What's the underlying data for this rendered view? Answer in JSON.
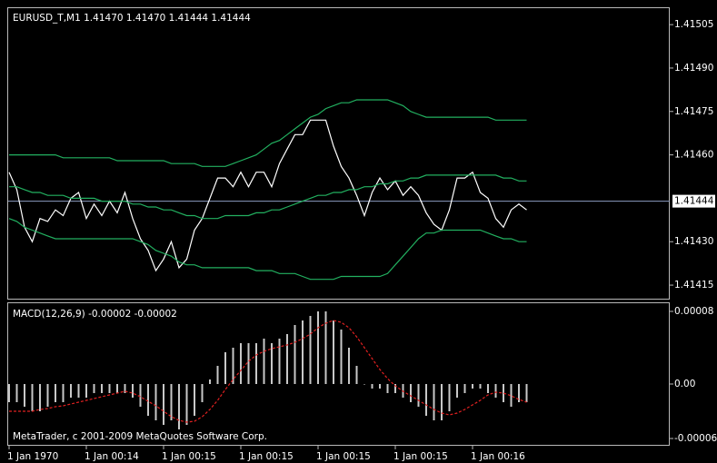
{
  "chart_data": [
    {
      "type": "line",
      "title": "EURUSD_T,M1  1.41470 1.41470 1.41444 1.41444",
      "categories": [
        "1 Jan 1970",
        null,
        null,
        null,
        null,
        null,
        null,
        null,
        null,
        null,
        "1 Jan 00:14",
        null,
        null,
        null,
        null,
        null,
        null,
        null,
        null,
        null,
        "1 Jan 00:15",
        null,
        null,
        null,
        null,
        null,
        null,
        null,
        null,
        null,
        "1 Jan 00:15",
        null,
        null,
        null,
        null,
        null,
        null,
        null,
        null,
        null,
        "1 Jan 00:15",
        null,
        null,
        null,
        null,
        null,
        null,
        null,
        null,
        null,
        "1 Jan 00:15",
        null,
        null,
        null,
        null,
        null,
        null,
        null,
        null,
        null,
        "1 Jan 00:16",
        null,
        null,
        null,
        null,
        null,
        null,
        null
      ],
      "ylim": [
        1.4141,
        1.41511
      ],
      "yticks": [
        1.41505,
        {
          "value": 1.4149,
          "label": "1.41490"
        },
        1.41475,
        {
          "value": 1.4146,
          "label": "1.41460"
        },
        {
          "value": 1.4143,
          "label": "1.41430"
        },
        1.41415
      ],
      "current_price": 1.41444,
      "current_price_color": "#8c9cc0",
      "grid": false,
      "series": [
        {
          "color": "#ffffff",
          "values": [
            1.41454,
            1.41448,
            1.41435,
            1.4143,
            1.41438,
            1.41437,
            1.41441,
            1.41439,
            1.41445,
            1.41447,
            1.41438,
            1.41443,
            1.41439,
            1.41444,
            1.4144,
            1.41447,
            1.41438,
            1.41431,
            1.41427,
            1.4142,
            1.41424,
            1.4143,
            1.41421,
            1.41424,
            1.41434,
            1.41438,
            1.41445,
            1.41452,
            1.41452,
            1.41449,
            1.41454,
            1.41449,
            1.41454,
            1.41454,
            1.41449,
            1.41457,
            1.41462,
            1.41467,
            1.41467,
            1.41472,
            1.41472,
            1.41472,
            1.41463,
            1.41456,
            1.41452,
            1.41446,
            1.41439,
            1.41447,
            1.41452,
            1.41448,
            1.41451,
            1.41446,
            1.41449,
            1.41446,
            1.4144,
            1.41436,
            1.41434,
            1.41441,
            1.41452,
            1.41452,
            1.41454,
            1.41447,
            1.41445,
            1.41438,
            1.41435,
            1.41441,
            1.41443,
            1.41441
          ]
        },
        {
          "color": "#22b060",
          "values": [
            1.4146,
            1.4146,
            1.4146,
            1.4146,
            1.4146,
            1.4146,
            1.4146,
            1.41459,
            1.41459,
            1.41459,
            1.41459,
            1.41459,
            1.41459,
            1.41459,
            1.41458,
            1.41458,
            1.41458,
            1.41458,
            1.41458,
            1.41458,
            1.41458,
            1.41457,
            1.41457,
            1.41457,
            1.41457,
            1.41456,
            1.41456,
            1.41456,
            1.41456,
            1.41457,
            1.41458,
            1.41459,
            1.4146,
            1.41462,
            1.41464,
            1.41465,
            1.41467,
            1.41469,
            1.41471,
            1.41473,
            1.41474,
            1.41476,
            1.41477,
            1.41478,
            1.41478,
            1.41479,
            1.41479,
            1.41479,
            1.41479,
            1.41479,
            1.41478,
            1.41477,
            1.41475,
            1.41474,
            1.41473,
            1.41473,
            1.41473,
            1.41473,
            1.41473,
            1.41473,
            1.41473,
            1.41473,
            1.41473,
            1.41472,
            1.41472,
            1.41472,
            1.41472,
            1.41472
          ]
        },
        {
          "color": "#22b060",
          "values": [
            1.41449,
            1.41449,
            1.41448,
            1.41447,
            1.41447,
            1.41446,
            1.41446,
            1.41446,
            1.41445,
            1.41445,
            1.41445,
            1.41445,
            1.41444,
            1.41444,
            1.41444,
            1.41444,
            1.41443,
            1.41443,
            1.41442,
            1.41442,
            1.41441,
            1.41441,
            1.4144,
            1.41439,
            1.41439,
            1.41438,
            1.41438,
            1.41438,
            1.41439,
            1.41439,
            1.41439,
            1.41439,
            1.4144,
            1.4144,
            1.41441,
            1.41441,
            1.41442,
            1.41443,
            1.41444,
            1.41445,
            1.41446,
            1.41446,
            1.41447,
            1.41447,
            1.41448,
            1.41448,
            1.41449,
            1.41449,
            1.4145,
            1.4145,
            1.41451,
            1.41451,
            1.41452,
            1.41452,
            1.41453,
            1.41453,
            1.41453,
            1.41453,
            1.41453,
            1.41453,
            1.41453,
            1.41453,
            1.41453,
            1.41453,
            1.41452,
            1.41452,
            1.41451,
            1.41451
          ]
        },
        {
          "color": "#22b060",
          "values": [
            1.41438,
            1.41437,
            1.41435,
            1.41434,
            1.41433,
            1.41432,
            1.41431,
            1.41431,
            1.41431,
            1.41431,
            1.41431,
            1.41431,
            1.41431,
            1.41431,
            1.41431,
            1.41431,
            1.41431,
            1.4143,
            1.41429,
            1.41427,
            1.41426,
            1.41425,
            1.41423,
            1.41422,
            1.41422,
            1.41421,
            1.41421,
            1.41421,
            1.41421,
            1.41421,
            1.41421,
            1.41421,
            1.4142,
            1.4142,
            1.4142,
            1.41419,
            1.41419,
            1.41419,
            1.41418,
            1.41417,
            1.41417,
            1.41417,
            1.41417,
            1.41418,
            1.41418,
            1.41418,
            1.41418,
            1.41418,
            1.41418,
            1.41419,
            1.41422,
            1.41425,
            1.41428,
            1.41431,
            1.41433,
            1.41433,
            1.41434,
            1.41434,
            1.41434,
            1.41434,
            1.41434,
            1.41434,
            1.41433,
            1.41432,
            1.41431,
            1.41431,
            1.4143,
            1.4143
          ]
        }
      ]
    },
    {
      "type": "bar",
      "title": "MACD(12,26,9) -0.00002 -0.00002",
      "footer": "MetaTrader, c 2001-2009 MetaQuotes Software Corp.",
      "ylim": [
        -6e-05,
        8e-05
      ],
      "yticks": [
        8e-05,
        {
          "value": 0,
          "label": "0.00"
        },
        -6e-05
      ],
      "series": [
        {
          "kind": "bar",
          "color": "#c8c8c8",
          "values": [
            -2e-05,
            -2e-05,
            -2.5e-05,
            -3e-05,
            -3e-05,
            -2.5e-05,
            -2e-05,
            -2e-05,
            -1.5e-05,
            -1.5e-05,
            -1.5e-05,
            -1e-05,
            -1e-05,
            -1e-05,
            -1e-05,
            -1e-05,
            -1.5e-05,
            -2.5e-05,
            -3.5e-05,
            -4e-05,
            -4.5e-05,
            -4e-05,
            -5e-05,
            -4.5e-05,
            -3.5e-05,
            -2e-05,
            5e-06,
            2e-05,
            3.5e-05,
            4e-05,
            4.5e-05,
            4.5e-05,
            4.5e-05,
            5e-05,
            4.5e-05,
            5e-05,
            5.5e-05,
            6.5e-05,
            7e-05,
            7.5e-05,
            8e-05,
            8e-05,
            7e-05,
            6e-05,
            4e-05,
            2e-05,
            0,
            -5e-06,
            -5e-06,
            -1e-05,
            -1e-05,
            -1.5e-05,
            -2e-05,
            -2.5e-05,
            -3.5e-05,
            -4e-05,
            -4e-05,
            -3e-05,
            -1.5e-05,
            -1e-05,
            -5e-06,
            -5e-06,
            -1e-05,
            -1.5e-05,
            -2e-05,
            -2.5e-05,
            -2e-05,
            -2e-05
          ]
        },
        {
          "kind": "line",
          "dashed": true,
          "color": "#e02020",
          "values": [
            -3e-05,
            -3e-05,
            -3e-05,
            -3e-05,
            -2.8e-05,
            -2.7e-05,
            -2.5e-05,
            -2.4e-05,
            -2.2e-05,
            -2e-05,
            -1.8e-05,
            -1.6e-05,
            -1.4e-05,
            -1.2e-05,
            -1e-05,
            -8e-06,
            -1e-05,
            -1.4e-05,
            -1.9e-05,
            -2.4e-05,
            -3e-05,
            -3.6e-05,
            -4e-05,
            -4.2e-05,
            -4.1e-05,
            -3.6e-05,
            -2.8e-05,
            -1.8e-05,
            -6e-06,
            5e-06,
            1.5e-05,
            2.5e-05,
            3.2e-05,
            3.6e-05,
            3.9e-05,
            4.1e-05,
            4.3e-05,
            4.6e-05,
            5e-05,
            5.5e-05,
            6.2e-05,
            6.7e-05,
            7e-05,
            6.8e-05,
            6.2e-05,
            5.2e-05,
            4e-05,
            2.8e-05,
            1.6e-05,
            6e-06,
            -2e-06,
            -8e-06,
            -1.3e-05,
            -1.8e-05,
            -2.3e-05,
            -2.8e-05,
            -3.2e-05,
            -3.4e-05,
            -3.2e-05,
            -2.8e-05,
            -2.3e-05,
            -1.8e-05,
            -1.2e-05,
            -9e-06,
            -1e-05,
            -1.3e-05,
            -1.7e-05,
            -2e-05
          ]
        }
      ]
    }
  ]
}
